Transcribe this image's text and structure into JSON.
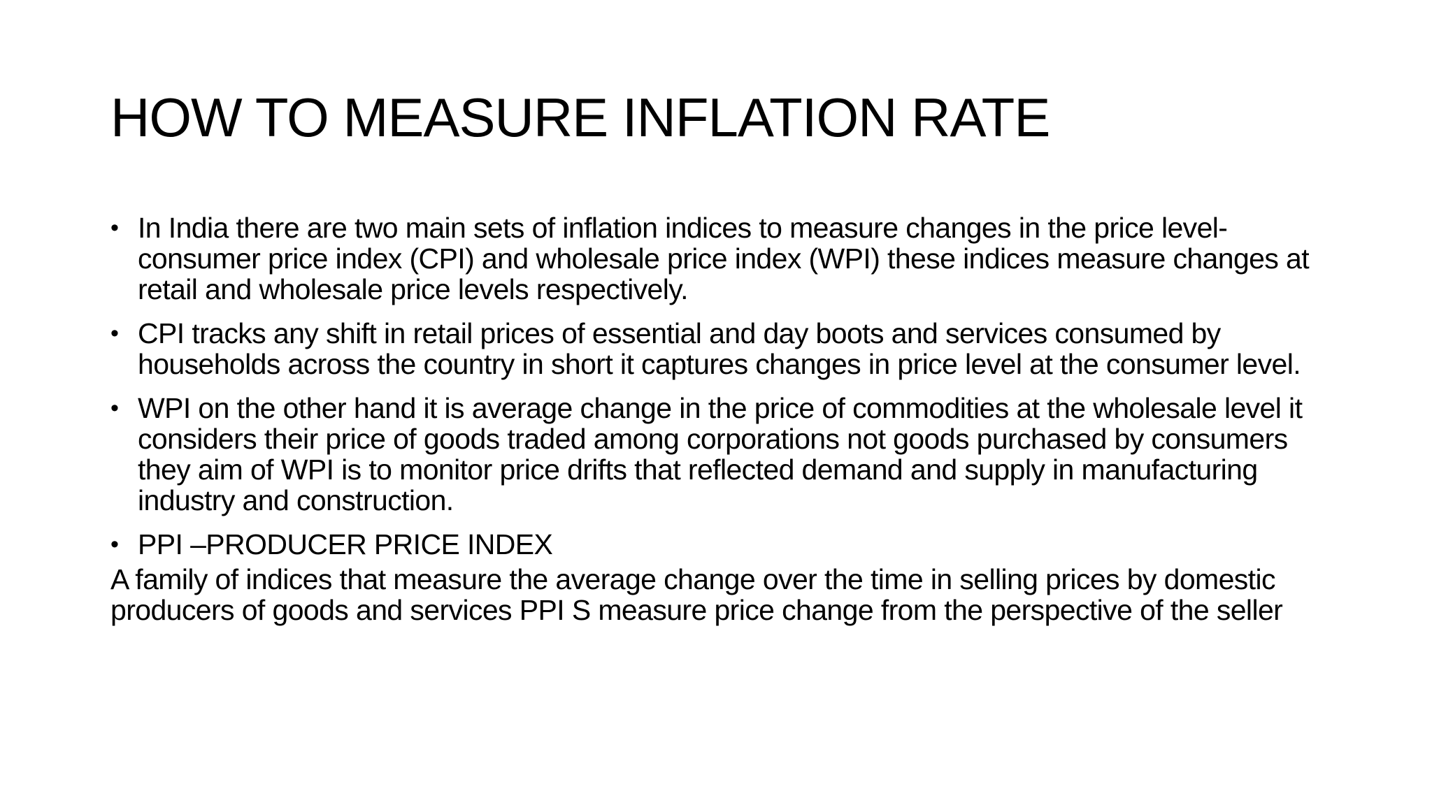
{
  "slide": {
    "title": "HOW TO MEASURE INFLATION RATE",
    "bullet_char": "•",
    "bullets": [
      "In India there are two main sets of inflation indices to measure changes in the price level- consumer price index (CPI) and wholesale price index (WPI) these indices measure changes at retail and wholesale price levels respectively.",
      "CPI tracks any shift in retail prices of essential and day boots and services consumed by households across the country in short it captures changes in price level at the consumer level.",
      "WPI on the other hand it is average change in the price of commodities at the wholesale level it considers their price of goods traded among corporations not goods purchased by consumers they aim of WPI is to monitor price drifts that reflected demand and supply in manufacturing industry and construction.",
      "PPI –PRODUCER PRICE INDEX"
    ],
    "paragraph": "A family of indices that measure the average change over the time in selling prices by domestic producers of goods and services PPI S measure price change from the perspective of the seller"
  }
}
